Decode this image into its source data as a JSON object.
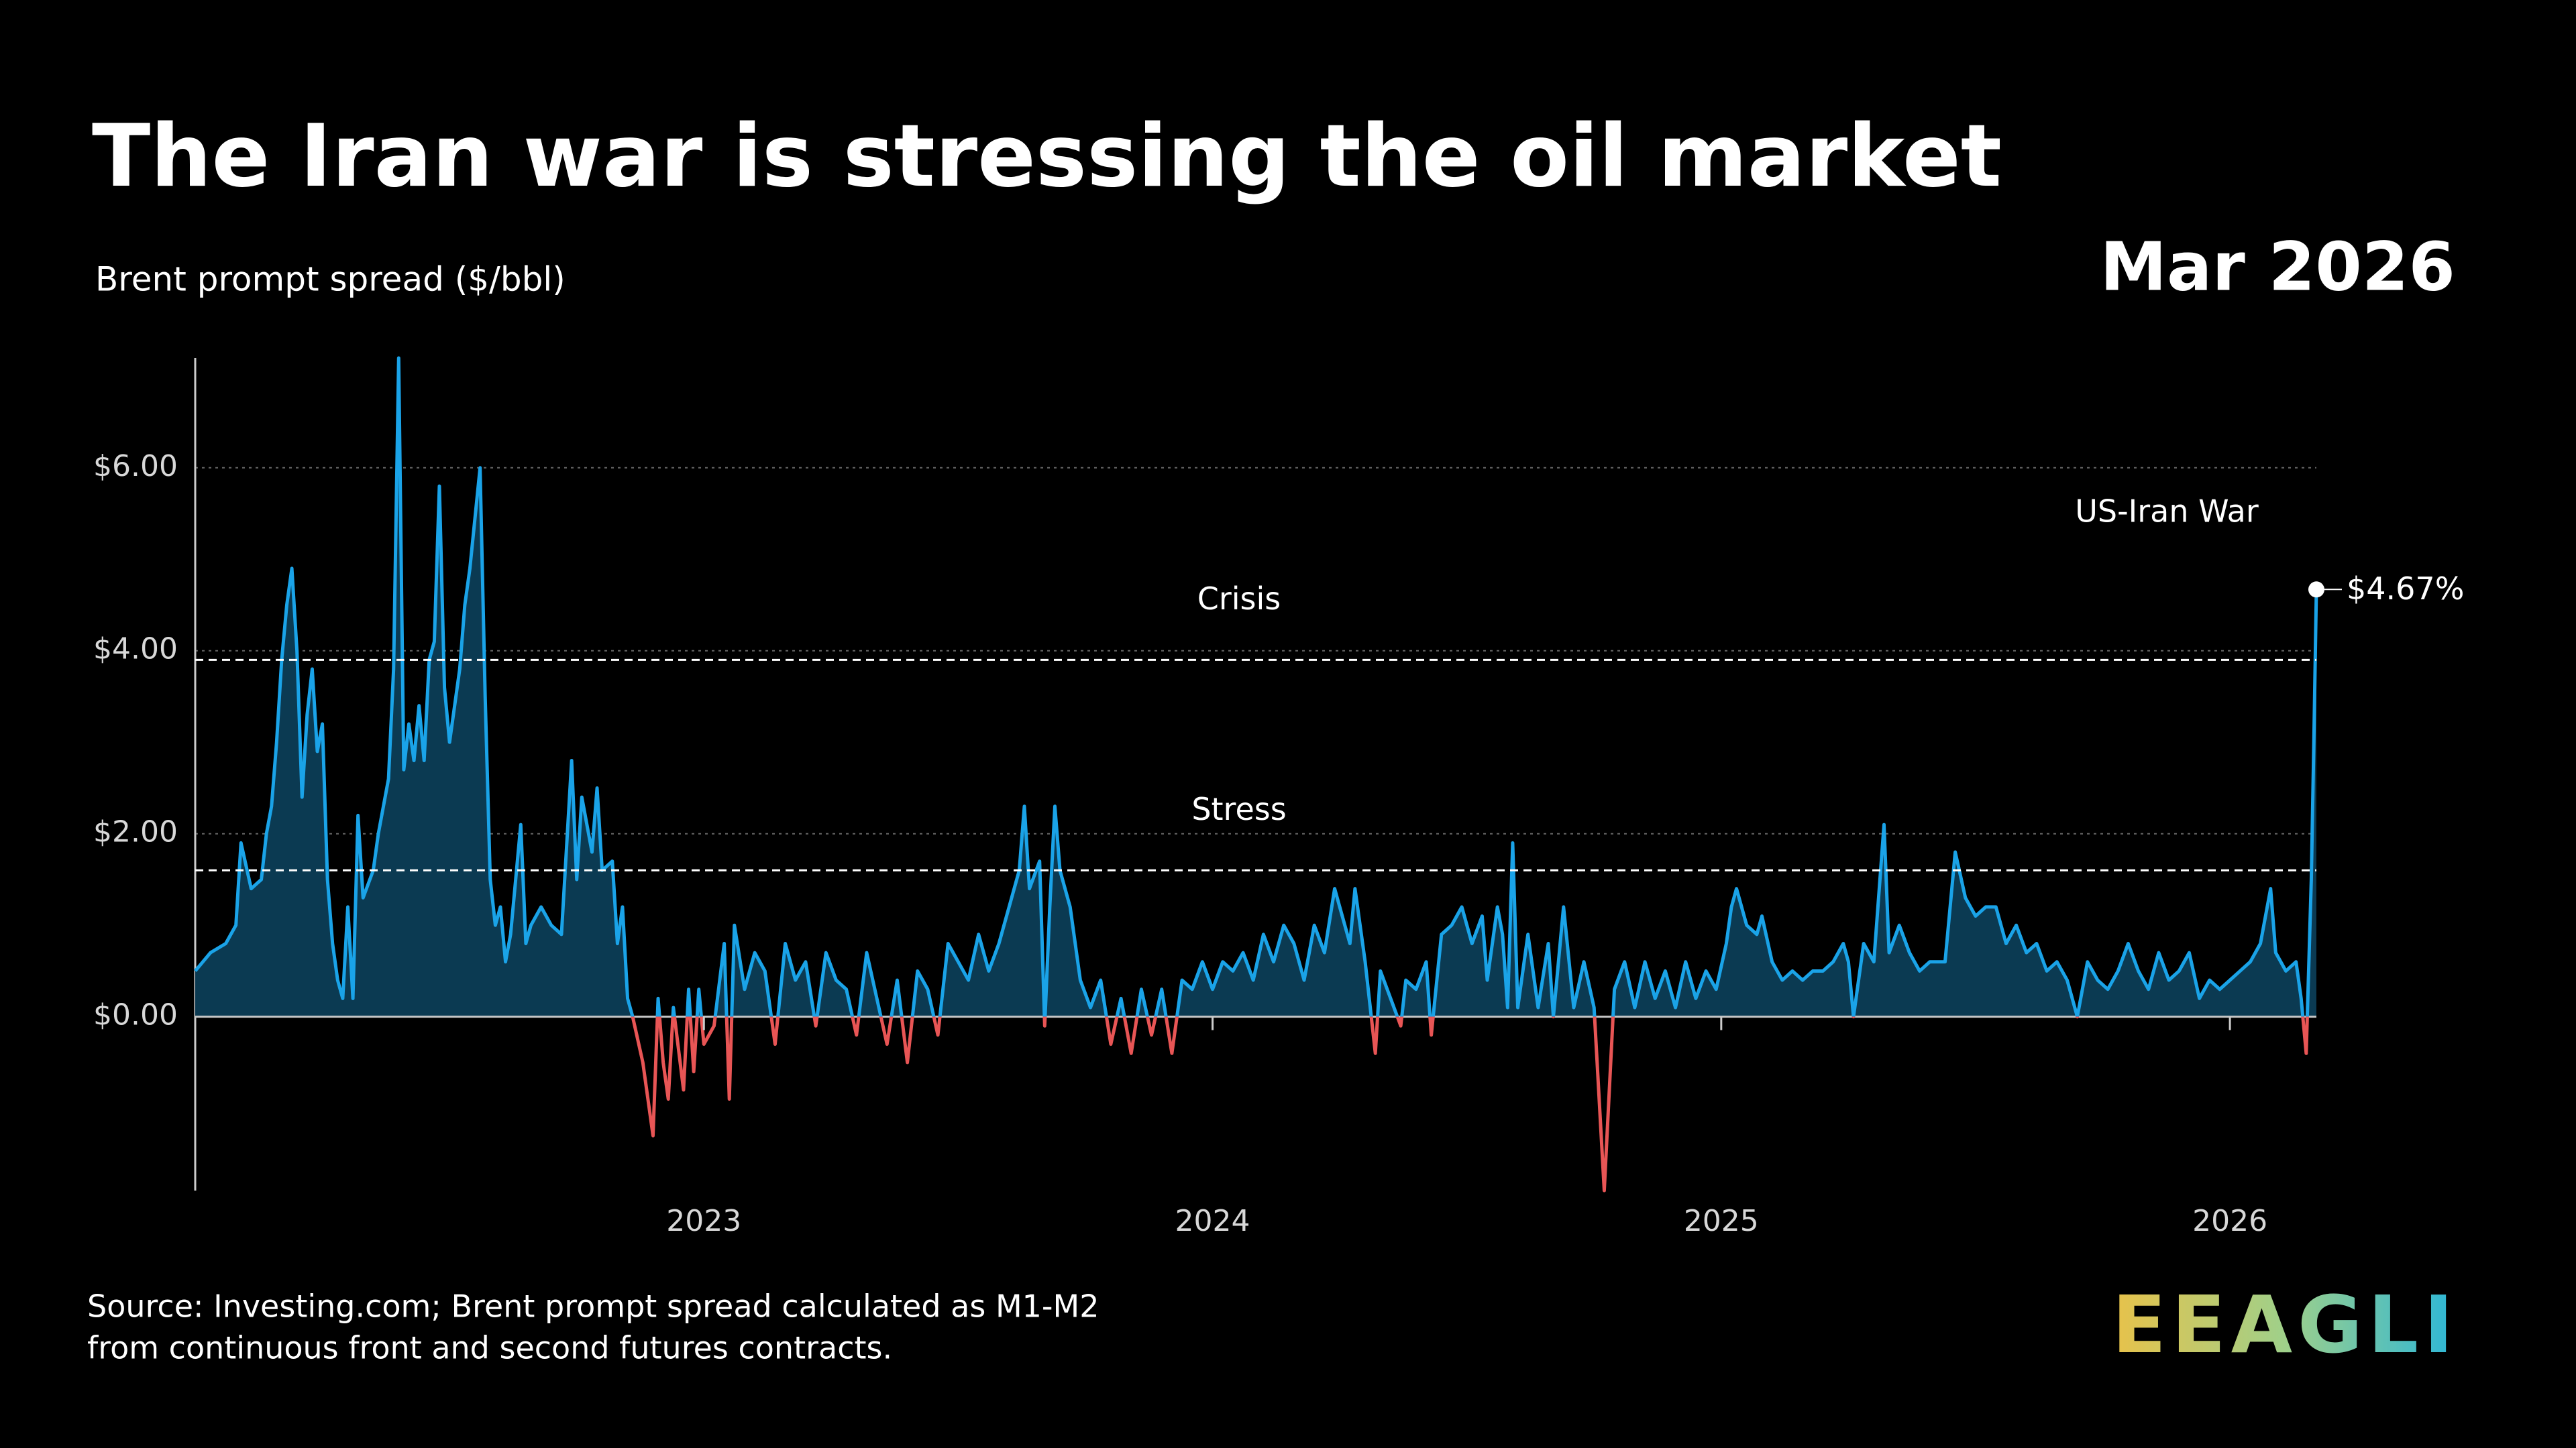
{
  "chart_data": {
    "type": "area",
    "title": "The Iran war is stressing the oil market",
    "y_axis_label": "Brent prompt spread ($/bbl)",
    "date_label": "Mar 2026",
    "annotation": "US-Iran War",
    "end_label": "$4.67%",
    "source": [
      "Source: Investing.com; Brent prompt spread calculated as M1-M2",
      "from continuous front and second futures contracts."
    ],
    "logo": "EEAGLI",
    "colors": {
      "positive": "#1aa3e8",
      "negative": "#e85555",
      "area": "#0b3a52"
    },
    "reference_lines": [
      {
        "value": 3.9,
        "label": "Crisis"
      },
      {
        "value": 1.6,
        "label": "Stress"
      }
    ],
    "xlim": [
      2022.0,
      2026.17
    ],
    "xticks": [
      2023,
      2024,
      2025,
      2026
    ],
    "ylim": [
      -1.9,
      7.2
    ],
    "yticks": [
      {
        "value": 0,
        "label": "$0.00"
      },
      {
        "value": 2,
        "label": "$2.00"
      },
      {
        "value": 4,
        "label": "$4.00"
      },
      {
        "value": 6,
        "label": "$6.00"
      }
    ],
    "grid": true,
    "x": [
      2022.0,
      2022.03,
      2022.06,
      2022.08,
      2022.09,
      2022.11,
      2022.13,
      2022.14,
      2022.15,
      2022.16,
      2022.17,
      2022.18,
      2022.19,
      2022.2,
      2022.21,
      2022.22,
      2022.23,
      2022.24,
      2022.25,
      2022.26,
      2022.27,
      2022.28,
      2022.29,
      2022.3,
      2022.31,
      2022.32,
      2022.33,
      2022.35,
      2022.36,
      2022.38,
      2022.39,
      2022.4,
      2022.41,
      2022.42,
      2022.43,
      2022.44,
      2022.45,
      2022.46,
      2022.47,
      2022.48,
      2022.49,
      2022.5,
      2022.52,
      2022.53,
      2022.54,
      2022.56,
      2022.57,
      2022.58,
      2022.59,
      2022.6,
      2022.61,
      2022.62,
      2022.64,
      2022.65,
      2022.66,
      2022.68,
      2022.7,
      2022.72,
      2022.74,
      2022.75,
      2022.76,
      2022.78,
      2022.79,
      2022.8,
      2022.82,
      2022.83,
      2022.84,
      2022.85,
      2022.86,
      2022.88,
      2022.9,
      2022.91,
      2022.92,
      2022.93,
      2022.94,
      2022.96,
      2022.97,
      2022.98,
      2022.99,
      2023.0,
      2023.02,
      2023.04,
      2023.05,
      2023.06,
      2023.08,
      2023.1,
      2023.12,
      2023.14,
      2023.16,
      2023.18,
      2023.2,
      2023.22,
      2023.24,
      2023.26,
      2023.28,
      2023.3,
      2023.32,
      2023.34,
      2023.36,
      2023.38,
      2023.4,
      2023.42,
      2023.44,
      2023.46,
      2023.48,
      2023.5,
      2023.52,
      2023.54,
      2023.56,
      2023.58,
      2023.6,
      2023.62,
      2023.63,
      2023.64,
      2023.66,
      2023.67,
      2023.68,
      2023.69,
      2023.7,
      2023.72,
      2023.74,
      2023.76,
      2023.78,
      2023.8,
      2023.82,
      2023.84,
      2023.86,
      2023.88,
      2023.9,
      2023.92,
      2023.94,
      2023.96,
      2023.98,
      2024.0,
      2024.02,
      2024.04,
      2024.06,
      2024.08,
      2024.1,
      2024.12,
      2024.14,
      2024.16,
      2024.18,
      2024.2,
      2024.22,
      2024.24,
      2024.25,
      2024.27,
      2024.28,
      2024.3,
      2024.32,
      2024.33,
      2024.35,
      2024.37,
      2024.38,
      2024.4,
      2024.42,
      2024.43,
      2024.45,
      2024.47,
      2024.49,
      2024.51,
      2024.53,
      2024.54,
      2024.56,
      2024.57,
      2024.58,
      2024.59,
      2024.6,
      2024.62,
      2024.64,
      2024.66,
      2024.67,
      2024.69,
      2024.71,
      2024.73,
      2024.75,
      2024.77,
      2024.79,
      2024.81,
      2024.83,
      2024.85,
      2024.87,
      2024.89,
      2024.91,
      2024.93,
      2024.95,
      2024.97,
      2024.99,
      2025.01,
      2025.02,
      2025.03,
      2025.05,
      2025.07,
      2025.08,
      2025.1,
      2025.12,
      2025.14,
      2025.16,
      2025.18,
      2025.2,
      2025.22,
      2025.24,
      2025.25,
      2025.26,
      2025.28,
      2025.3,
      2025.32,
      2025.33,
      2025.35,
      2025.37,
      2025.39,
      2025.41,
      2025.44,
      2025.46,
      2025.48,
      2025.5,
      2025.52,
      2025.54,
      2025.56,
      2025.58,
      2025.6,
      2025.62,
      2025.64,
      2025.66,
      2025.68,
      2025.7,
      2025.72,
      2025.74,
      2025.76,
      2025.78,
      2025.8,
      2025.82,
      2025.84,
      2025.86,
      2025.88,
      2025.9,
      2025.92,
      2025.94,
      2025.96,
      2025.98,
      2026.0,
      2026.02,
      2026.04,
      2026.06,
      2026.08,
      2026.09,
      2026.11,
      2026.13,
      2026.14,
      2026.15,
      2026.16,
      2026.165,
      2026.17
    ],
    "values": [
      0.5,
      0.7,
      0.8,
      1.0,
      1.9,
      1.4,
      1.5,
      2.0,
      2.3,
      3.0,
      3.9,
      4.5,
      4.9,
      4.0,
      2.4,
      3.3,
      3.8,
      2.9,
      3.2,
      1.5,
      0.8,
      0.4,
      0.2,
      1.2,
      0.2,
      2.2,
      1.3,
      1.6,
      2.0,
      2.6,
      3.8,
      7.2,
      2.7,
      3.2,
      2.8,
      3.4,
      2.8,
      3.9,
      4.1,
      5.8,
      3.6,
      3.0,
      3.8,
      4.5,
      4.9,
      6.0,
      3.5,
      1.5,
      1.0,
      1.2,
      0.6,
      0.9,
      2.1,
      0.8,
      1.0,
      1.2,
      1.0,
      0.9,
      2.8,
      1.5,
      2.4,
      1.8,
      2.5,
      1.6,
      1.7,
      0.8,
      1.2,
      0.2,
      0.0,
      -0.5,
      -1.3,
      0.2,
      -0.5,
      -0.9,
      0.1,
      -0.8,
      0.3,
      -0.6,
      0.3,
      -0.3,
      -0.1,
      0.8,
      -0.9,
      1.0,
      0.3,
      0.7,
      0.5,
      -0.3,
      0.8,
      0.4,
      0.6,
      -0.1,
      0.7,
      0.4,
      0.3,
      -0.2,
      0.7,
      0.2,
      -0.3,
      0.4,
      -0.5,
      0.5,
      0.3,
      -0.2,
      0.8,
      0.6,
      0.4,
      0.9,
      0.5,
      0.8,
      1.2,
      1.6,
      2.3,
      1.4,
      1.7,
      -0.1,
      1.2,
      2.3,
      1.6,
      1.2,
      0.4,
      0.1,
      0.4,
      -0.3,
      0.2,
      -0.4,
      0.3,
      -0.2,
      0.3,
      -0.4,
      0.4,
      0.3,
      0.6,
      0.3,
      0.6,
      0.5,
      0.7,
      0.4,
      0.9,
      0.6,
      1.0,
      0.8,
      0.4,
      1.0,
      0.7,
      1.4,
      1.2,
      0.8,
      1.4,
      0.6,
      -0.4,
      0.5,
      0.2,
      -0.1,
      0.4,
      0.3,
      0.6,
      -0.2,
      0.9,
      1.0,
      1.2,
      0.8,
      1.1,
      0.4,
      1.2,
      0.9,
      0.1,
      1.9,
      0.1,
      0.9,
      0.1,
      0.8,
      0.0,
      1.2,
      0.1,
      0.6,
      0.1,
      -1.9,
      0.3,
      0.6,
      0.1,
      0.6,
      0.2,
      0.5,
      0.1,
      0.6,
      0.2,
      0.5,
      0.3,
      0.8,
      1.2,
      1.4,
      1.0,
      0.9,
      1.1,
      0.6,
      0.4,
      0.5,
      0.4,
      0.5,
      0.5,
      0.6,
      0.8,
      0.6,
      0.0,
      0.8,
      0.6,
      2.1,
      0.7,
      1.0,
      0.7,
      0.5,
      0.6,
      0.6,
      1.8,
      1.3,
      1.1,
      1.2,
      1.2,
      0.8,
      1.0,
      0.7,
      0.8,
      0.5,
      0.6,
      0.4,
      0.0,
      0.6,
      0.4,
      0.3,
      0.5,
      0.8,
      0.5,
      0.3,
      0.7,
      0.4,
      0.5,
      0.7,
      0.2,
      0.4,
      0.3,
      0.4,
      0.5,
      0.6,
      0.8,
      1.4,
      0.7,
      0.5,
      0.6,
      0.2,
      -0.4,
      1.5,
      3.0,
      4.67
    ]
  }
}
